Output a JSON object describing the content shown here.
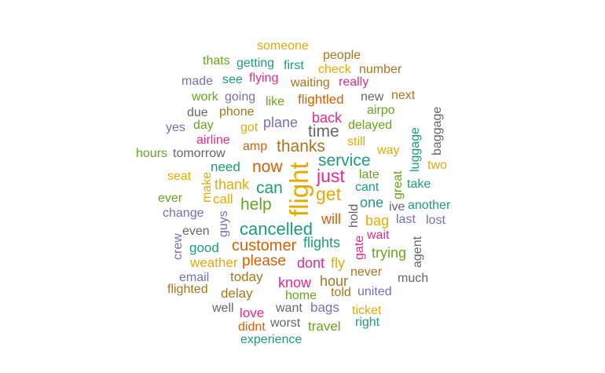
{
  "palette": {
    "teal": "#1b9e77",
    "orange": "#d95f02",
    "purple": "#7570b3",
    "pink": "#e7298a",
    "green": "#66a61e",
    "gold": "#e6ab02",
    "brown": "#a6761d",
    "gray": "#666666"
  },
  "words": [
    {
      "text": "someone",
      "color": "gold"
    },
    {
      "text": "thats",
      "color": "green"
    },
    {
      "text": "getting",
      "color": "teal"
    },
    {
      "text": "first",
      "color": "teal"
    },
    {
      "text": "people",
      "color": "brown"
    },
    {
      "text": "check",
      "color": "gold"
    },
    {
      "text": "number",
      "color": "brown"
    },
    {
      "text": "made",
      "color": "purple"
    },
    {
      "text": "see",
      "color": "teal"
    },
    {
      "text": "flying",
      "color": "pink"
    },
    {
      "text": "waiting",
      "color": "brown"
    },
    {
      "text": "really",
      "color": "pink"
    },
    {
      "text": "work",
      "color": "green"
    },
    {
      "text": "going",
      "color": "purple"
    },
    {
      "text": "like",
      "color": "green"
    },
    {
      "text": "flightled",
      "color": "orange"
    },
    {
      "text": "new",
      "color": "gray"
    },
    {
      "text": "next",
      "color": "brown"
    },
    {
      "text": "due",
      "color": "gray"
    },
    {
      "text": "phone",
      "color": "brown"
    },
    {
      "text": "airpo",
      "color": "green"
    },
    {
      "text": "baggage",
      "color": "gray"
    },
    {
      "text": "yes",
      "color": "purple"
    },
    {
      "text": "day",
      "color": "green"
    },
    {
      "text": "got",
      "color": "gold"
    },
    {
      "text": "plane",
      "color": "purple"
    },
    {
      "text": "back",
      "color": "pink"
    },
    {
      "text": "time",
      "color": "gray"
    },
    {
      "text": "delayed",
      "color": "green"
    },
    {
      "text": "luggage",
      "color": "teal"
    },
    {
      "text": "airline",
      "color": "pink"
    },
    {
      "text": "still",
      "color": "gold"
    },
    {
      "text": "amp",
      "color": "orange"
    },
    {
      "text": "thanks",
      "color": "brown"
    },
    {
      "text": "way",
      "color": "gold"
    },
    {
      "text": "hours",
      "color": "green"
    },
    {
      "text": "tomorrow",
      "color": "gray"
    },
    {
      "text": "flight",
      "color": "gold"
    },
    {
      "text": "service",
      "color": "teal"
    },
    {
      "text": "two",
      "color": "gold"
    },
    {
      "text": "need",
      "color": "teal"
    },
    {
      "text": "now",
      "color": "orange"
    },
    {
      "text": "seat",
      "color": "gold"
    },
    {
      "text": "make",
      "color": "gold"
    },
    {
      "text": "just",
      "color": "pink"
    },
    {
      "text": "late",
      "color": "green"
    },
    {
      "text": "thank",
      "color": "gold"
    },
    {
      "text": "can",
      "color": "teal"
    },
    {
      "text": "cant",
      "color": "teal"
    },
    {
      "text": "great",
      "color": "green"
    },
    {
      "text": "take",
      "color": "teal"
    },
    {
      "text": "get",
      "color": "gold"
    },
    {
      "text": "ever",
      "color": "green"
    },
    {
      "text": "call",
      "color": "gold"
    },
    {
      "text": "help",
      "color": "green"
    },
    {
      "text": "one",
      "color": "teal"
    },
    {
      "text": "hold",
      "color": "gray"
    },
    {
      "text": "ive",
      "color": "gray"
    },
    {
      "text": "another",
      "color": "teal"
    },
    {
      "text": "change",
      "color": "purple"
    },
    {
      "text": "guys",
      "color": "purple"
    },
    {
      "text": "will",
      "color": "orange"
    },
    {
      "text": "bag",
      "color": "gold"
    },
    {
      "text": "last",
      "color": "purple"
    },
    {
      "text": "lost",
      "color": "purple"
    },
    {
      "text": "crew",
      "color": "purple"
    },
    {
      "text": "even",
      "color": "gray"
    },
    {
      "text": "cancelled",
      "color": "teal"
    },
    {
      "text": "agent",
      "color": "gray"
    },
    {
      "text": "gate",
      "color": "pink"
    },
    {
      "text": "wait",
      "color": "pink"
    },
    {
      "text": "flights",
      "color": "teal"
    },
    {
      "text": "good",
      "color": "teal"
    },
    {
      "text": "customer",
      "color": "orange"
    },
    {
      "text": "trying",
      "color": "green"
    },
    {
      "text": "weather",
      "color": "gold"
    },
    {
      "text": "please",
      "color": "orange"
    },
    {
      "text": "dont",
      "color": "pink"
    },
    {
      "text": "fly",
      "color": "gold"
    },
    {
      "text": "never",
      "color": "brown"
    },
    {
      "text": "email",
      "color": "purple"
    },
    {
      "text": "today",
      "color": "brown"
    },
    {
      "text": "know",
      "color": "pink"
    },
    {
      "text": "hour",
      "color": "brown"
    },
    {
      "text": "much",
      "color": "gray"
    },
    {
      "text": "flighted",
      "color": "brown"
    },
    {
      "text": "delay",
      "color": "brown"
    },
    {
      "text": "home",
      "color": "green"
    },
    {
      "text": "told",
      "color": "brown"
    },
    {
      "text": "united",
      "color": "purple"
    },
    {
      "text": "well",
      "color": "gray"
    },
    {
      "text": "love",
      "color": "pink"
    },
    {
      "text": "want",
      "color": "gray"
    },
    {
      "text": "bags",
      "color": "purple"
    },
    {
      "text": "ticket",
      "color": "gold"
    },
    {
      "text": "didnt",
      "color": "orange"
    },
    {
      "text": "worst",
      "color": "gray"
    },
    {
      "text": "travel",
      "color": "green"
    },
    {
      "text": "right",
      "color": "teal"
    },
    {
      "text": "experience",
      "color": "teal"
    }
  ]
}
